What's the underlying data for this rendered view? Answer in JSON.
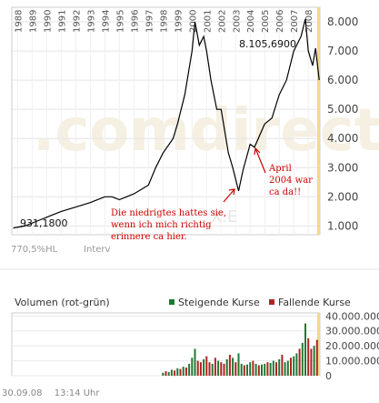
{
  "price_chart": {
    "year_labels": [
      "1988",
      "1989",
      "1990",
      "1991",
      "1992",
      "1993",
      "1994",
      "1995",
      "1996",
      "1997",
      "1998",
      "1999",
      "2000",
      "2001",
      "2002",
      "2003",
      "2004",
      "2005",
      "2006",
      "2007",
      "2008"
    ],
    "y_tick_labels": [
      "1.000",
      "2.000",
      "3.000",
      "4.000",
      "5.000",
      "6.000",
      "7.000",
      "8.000"
    ],
    "low_callout": "931,1800",
    "high_callout": "8.105,6900",
    "performance": "770,5%HL",
    "interval_label": "Interv",
    "watermark": ".comdirect",
    "ticker_watermark": "X.E",
    "annotation_left": [
      "Die niedrigtes hattes sie,",
      "wenn ich mich richtig",
      "erinnere ca hier."
    ],
    "annotation_right": [
      "April",
      "2004 war",
      "ca da!!"
    ],
    "colors": {
      "line": "#000000",
      "annotation": "#cc0000",
      "current_marker": "#f2d98a"
    }
  },
  "volume_panel": {
    "title": "Volumen (rot-grün)",
    "legend_up": "Steigende Kurse",
    "legend_down": "Fallende Kurse",
    "y_tick_labels": [
      "40.000.000",
      "30.000.000",
      "20.000.000",
      "10.000.000",
      "0"
    ],
    "colors": {
      "up": "#1e7a32",
      "down": "#b22222"
    }
  },
  "footer": {
    "date": "30.09.08",
    "time": "13:14 Uhr"
  },
  "chart_data": [
    {
      "type": "line",
      "x": [
        1987.7,
        1988.5,
        1989.5,
        1990.0,
        1990.5,
        1991.0,
        1992.0,
        1993.0,
        1994.0,
        1994.5,
        1995.0,
        1995.5,
        1996.0,
        1997.0,
        1997.5,
        1998.0,
        1998.7,
        1999.0,
        1999.5,
        2000.0,
        2000.2,
        2000.5,
        2000.8,
        2001.0,
        2001.3,
        2001.7,
        2002.0,
        2002.5,
        2002.8,
        2003.2,
        2003.5,
        2004.0,
        2004.3,
        2005.0,
        2005.5,
        2006.0,
        2006.5,
        2007.0,
        2007.5,
        2007.8,
        2008.0,
        2008.3,
        2008.5,
        2008.75
      ],
      "y": [
        931,
        1000,
        1200,
        1300,
        1400,
        1500,
        1650,
        1800,
        2000,
        2000,
        1900,
        2000,
        2100,
        2400,
        3000,
        3500,
        4000,
        4500,
        5500,
        7000,
        8000,
        7200,
        7500,
        7000,
        6000,
        5000,
        5000,
        3500,
        3000,
        2200,
        2900,
        3800,
        3700,
        4500,
        4700,
        5500,
        6000,
        7000,
        7500,
        8100,
        7000,
        6500,
        7100,
        6000
      ],
      "ylim": [
        700,
        8500
      ],
      "xlim": [
        1987.6,
        2008.8
      ]
    },
    {
      "type": "bar",
      "name": "Volumen",
      "x": [
        1998.0,
        1998.2,
        1998.4,
        1998.6,
        1998.8,
        1999.0,
        1999.2,
        1999.4,
        1999.6,
        1999.8,
        2000.0,
        2000.2,
        2000.4,
        2000.6,
        2000.8,
        2001.0,
        2001.2,
        2001.4,
        2001.6,
        2001.8,
        2002.0,
        2002.2,
        2002.4,
        2002.6,
        2002.8,
        2003.0,
        2003.2,
        2003.4,
        2003.6,
        2003.8,
        2004.0,
        2004.2,
        2004.4,
        2004.6,
        2004.8,
        2005.0,
        2005.2,
        2005.4,
        2005.6,
        2005.8,
        2006.0,
        2006.2,
        2006.4,
        2006.6,
        2006.8,
        2007.0,
        2007.2,
        2007.4,
        2007.6,
        2007.8,
        2008.0,
        2008.2,
        2008.4,
        2008.6
      ],
      "values": [
        2000000,
        3000000,
        2500000,
        4000000,
        3500000,
        5000000,
        4500000,
        6000000,
        5500000,
        8000000,
        12000000,
        18000000,
        10000000,
        9000000,
        11000000,
        13000000,
        9000000,
        8000000,
        12000000,
        10000000,
        9000000,
        8000000,
        11000000,
        14000000,
        12000000,
        9000000,
        15000000,
        8000000,
        7000000,
        7500000,
        9000000,
        10000000,
        8000000,
        7000000,
        7500000,
        8000000,
        9000000,
        8500000,
        10000000,
        9000000,
        11000000,
        14000000,
        9000000,
        10000000,
        12000000,
        13000000,
        15000000,
        18000000,
        22000000,
        35000000,
        25000000,
        18000000,
        20000000,
        24000000
      ],
      "direction": [
        "up",
        "down",
        "up",
        "up",
        "down",
        "up",
        "down",
        "up",
        "down",
        "up",
        "up",
        "up",
        "down",
        "down",
        "up",
        "down",
        "down",
        "up",
        "down",
        "up",
        "down",
        "down",
        "up",
        "down",
        "up",
        "down",
        "up",
        "up",
        "down",
        "up",
        "up",
        "down",
        "up",
        "down",
        "up",
        "up",
        "down",
        "up",
        "up",
        "down",
        "up",
        "down",
        "up",
        "up",
        "down",
        "up",
        "up",
        "down",
        "up",
        "up",
        "down",
        "down",
        "up",
        "down"
      ],
      "ylim": [
        0,
        42000000
      ]
    }
  ]
}
